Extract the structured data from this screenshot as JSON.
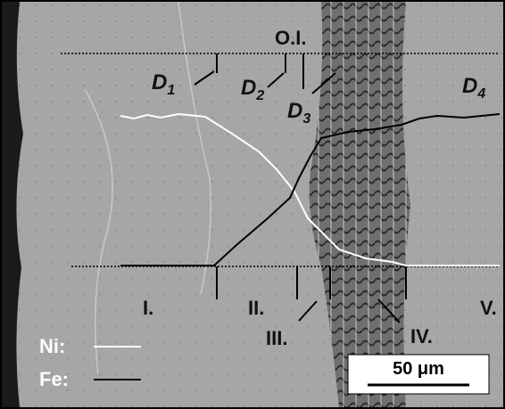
{
  "overlay_labels": {
    "oi": "O.I.",
    "d1": {
      "letter": "D",
      "sub": "1"
    },
    "d2": {
      "letter": "D",
      "sub": "2"
    },
    "d3": {
      "letter": "D",
      "sub": "3"
    },
    "d4": {
      "letter": "D",
      "sub": "4"
    },
    "zones": [
      "I.",
      "II.",
      "III.",
      "IV.",
      "V."
    ]
  },
  "legend": {
    "ni": "Ni:",
    "fe": "Fe:"
  },
  "scale_bar": "50 μm"
}
